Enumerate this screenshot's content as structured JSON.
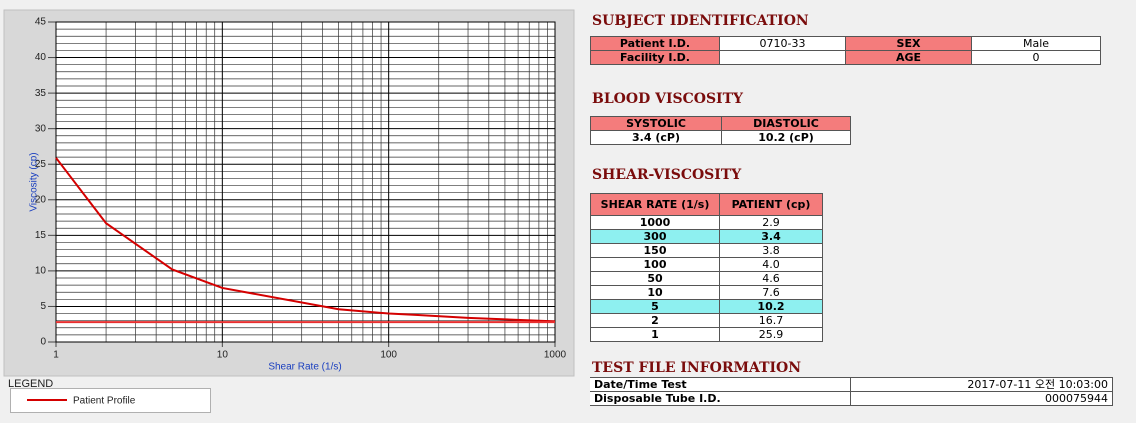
{
  "chart_data": {
    "type": "line",
    "x_label": "Shear Rate (1/s)",
    "y_label": "Viscosity (cp)",
    "xscale": "log",
    "xlim": [
      1,
      1000
    ],
    "xticks": [
      1,
      10,
      100,
      1000
    ],
    "xminorticks": [
      2,
      3,
      4,
      5,
      6,
      7,
      8,
      9,
      20,
      30,
      40,
      50,
      60,
      70,
      80,
      90,
      200,
      300,
      400,
      500,
      600,
      700,
      800,
      900
    ],
    "ylim": [
      0,
      45
    ],
    "yticks": [
      0,
      5,
      10,
      15,
      20,
      25,
      30,
      35,
      40,
      45
    ],
    "yminorticks": [
      1,
      2,
      3,
      4,
      6,
      7,
      8,
      9,
      11,
      12,
      13,
      14,
      16,
      17,
      18,
      19,
      21,
      22,
      23,
      24,
      26,
      27,
      28,
      29,
      31,
      32,
      33,
      34,
      36,
      37,
      38,
      39,
      41,
      42,
      43,
      44
    ],
    "grid": true,
    "legend_title": "LEGEND",
    "series": [
      {
        "name": "Patient Profile",
        "color": "#d40000",
        "x": [
          1,
          2,
          5,
          10,
          50,
          100,
          150,
          300,
          1000
        ],
        "values": [
          25.9,
          16.7,
          10.2,
          7.6,
          4.6,
          4.0,
          3.8,
          3.4,
          2.9
        ]
      },
      {
        "color": "#e83030",
        "x": [
          1,
          1000
        ],
        "values": [
          2.8,
          2.8
        ]
      }
    ]
  },
  "subject": {
    "title": "SUBJECT IDENTIFICATION",
    "rows": [
      [
        "Patient I.D.",
        "0710-33",
        "SEX",
        "Male"
      ],
      [
        "Facility I.D.",
        null,
        "AGE",
        "0"
      ]
    ]
  },
  "blood": {
    "title": "BLOOD VISCOSITY",
    "header": [
      "SYSTOLIC",
      "DIASTOLIC"
    ],
    "values": [
      "3.4 (cP)",
      "10.2 (cP)"
    ]
  },
  "shear": {
    "title": "SHEAR-VISCOSITY",
    "header": [
      "SHEAR RATE (1/s)",
      "PATIENT (cp)"
    ],
    "highlight": [
      1,
      6
    ],
    "rows": [
      [
        "1000",
        "2.9"
      ],
      [
        "300",
        "3.4"
      ],
      [
        "150",
        "3.8"
      ],
      [
        "100",
        "4.0"
      ],
      [
        "50",
        "4.6"
      ],
      [
        "10",
        "7.6"
      ],
      [
        "5",
        "10.2"
      ],
      [
        "2",
        "16.7"
      ],
      [
        "1",
        "25.9"
      ]
    ]
  },
  "testfile": {
    "title": "TEST FILE INFORMATION",
    "rows": [
      [
        "Date/Time Test",
        "2017-07-11  오전 10:03:00"
      ],
      [
        "Disposable Tube I.D.",
        "000075944"
      ]
    ]
  }
}
